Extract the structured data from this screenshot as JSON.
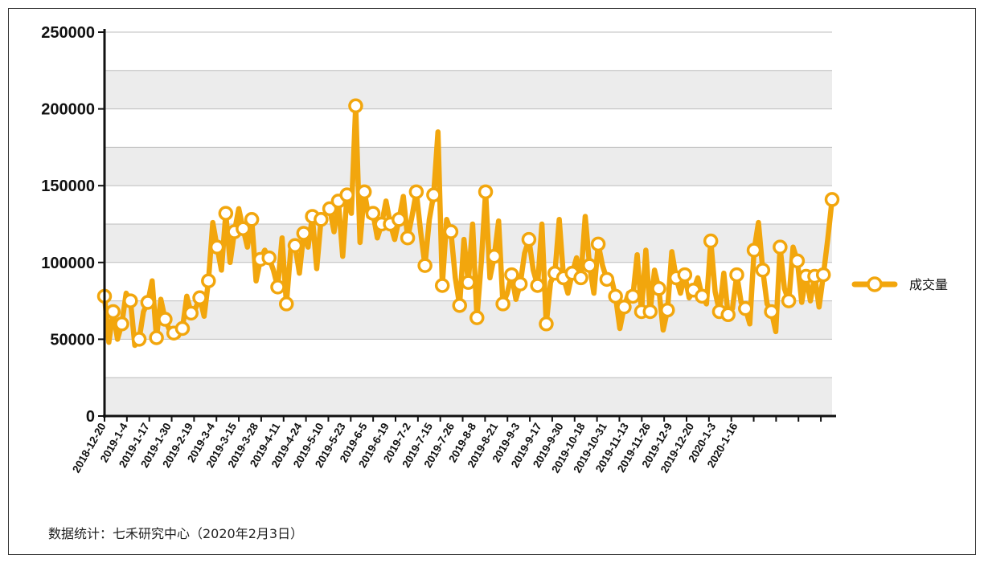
{
  "chart_data": {
    "type": "line",
    "title": "",
    "xlabel": "",
    "ylabel": "",
    "ylim": [
      0,
      250000
    ],
    "yticks": [
      0,
      50000,
      100000,
      150000,
      200000,
      250000
    ],
    "ytick_labels": [
      "0",
      "50000",
      "100000",
      "150000",
      "200000",
      "250000"
    ],
    "grid": true,
    "legend_position": "right",
    "x_tick_labels": [
      "2018-12-20",
      "2019-1-4",
      "2019-1-17",
      "2019-1-30",
      "2019-2-19",
      "2019-3-4",
      "2019-3-15",
      "2019-3-28",
      "2019-4-11",
      "2019-4-24",
      "2019-5-10",
      "2019-5-23",
      "2019-6-5",
      "2019-6-19",
      "2019-7-2",
      "2019-7-15",
      "2019-7-26",
      "2019-8-8",
      "2019-8-21",
      "2019-9-3",
      "2019-9-17",
      "2019-9-30",
      "2019-10-18",
      "2019-10-31",
      "2019-11-13",
      "2019-11-26",
      "2019-12-9",
      "2019-12-20",
      "2020-1-3",
      "2020-1-16"
    ],
    "series": [
      {
        "name": "成交量",
        "color": "#f2a60d",
        "marker_fill": "#ffffff",
        "values": [
          78000,
          48000,
          68000,
          50000,
          60000,
          80000,
          75000,
          46000,
          50000,
          68000,
          74000,
          88000,
          51000,
          76000,
          63000,
          56000,
          54000,
          52000,
          57000,
          78000,
          67000,
          70000,
          77000,
          65000,
          88000,
          126000,
          110000,
          95000,
          132000,
          100000,
          120000,
          135000,
          122000,
          110000,
          128000,
          88000,
          102000,
          108000,
          103000,
          95000,
          84000,
          116000,
          73000,
          108000,
          111000,
          93000,
          119000,
          110000,
          130000,
          96000,
          128000,
          132000,
          135000,
          120000,
          140000,
          104000,
          144000,
          132000,
          202000,
          113000,
          146000,
          130000,
          132000,
          116000,
          125000,
          140000,
          125000,
          115000,
          128000,
          143000,
          116000,
          130000,
          146000,
          120000,
          98000,
          128000,
          144000,
          185000,
          85000,
          128000,
          120000,
          90000,
          72000,
          115000,
          87000,
          125000,
          64000,
          100000,
          146000,
          90000,
          104000,
          127000,
          73000,
          80000,
          92000,
          76000,
          86000,
          106000,
          115000,
          95000,
          85000,
          125000,
          60000,
          87000,
          93000,
          128000,
          90000,
          80000,
          93000,
          103000,
          90000,
          130000,
          98000,
          80000,
          112000,
          98000,
          89000,
          90000,
          78000,
          57000,
          71000,
          80000,
          78000,
          105000,
          68000,
          108000,
          68000,
          95000,
          83000,
          56000,
          69000,
          107000,
          90000,
          80000,
          92000,
          77000,
          82000,
          90000,
          78000,
          73000,
          114000,
          81000,
          68000,
          93000,
          66000,
          70000,
          92000,
          74000,
          70000,
          60000,
          108000,
          126000,
          95000,
          73000,
          68000,
          55000,
          110000,
          83000,
          75000,
          110000,
          101000,
          74000,
          91000,
          75000,
          91000,
          71000,
          92000,
          115000,
          141000
        ]
      }
    ]
  },
  "legend": {
    "label": "成交量"
  },
  "footnote": "数据统计：七禾研究中心（2020年2月3日）"
}
